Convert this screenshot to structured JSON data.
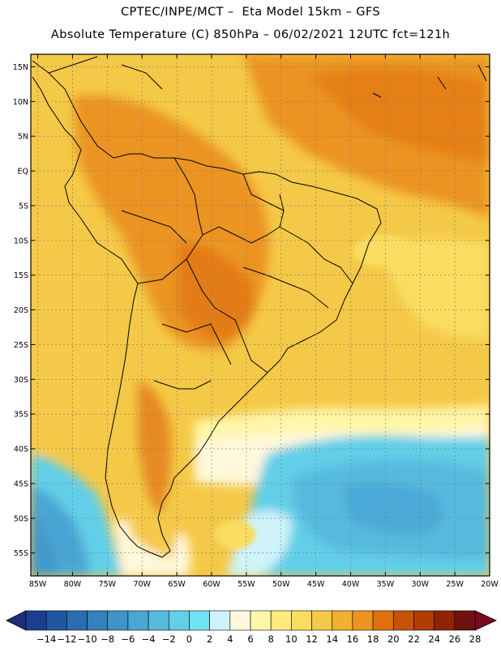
{
  "header": {
    "line1": "CPTEC/INPE/MCT –  Eta Model 15km – GFS",
    "line2": "Absolute Temperature (C) 850hPa – 06/02/2021 12UTC fct=121h"
  },
  "map": {
    "lat_labels": [
      "15N",
      "10N",
      "5N",
      "EQ",
      "5S",
      "10S",
      "15S",
      "20S",
      "25S",
      "30S",
      "35S",
      "40S",
      "45S",
      "50S",
      "55S"
    ],
    "lon_labels": [
      "85W",
      "80W",
      "75W",
      "70W",
      "65W",
      "60W",
      "55W",
      "50W",
      "45W",
      "40W",
      "35W",
      "30W",
      "25W",
      "20W"
    ]
  },
  "colorbar": {
    "labels": [
      "-14",
      "-12",
      "-10",
      "-8",
      "-6",
      "-4",
      "-2",
      "0",
      "2",
      "4",
      "6",
      "8",
      "10",
      "12",
      "14",
      "16",
      "18",
      "20",
      "22",
      "24",
      "26",
      "28"
    ],
    "colors": [
      "#1b3f8f",
      "#2157a0",
      "#2a6db0",
      "#3580bd",
      "#3f93c8",
      "#4aa6d4",
      "#56bade",
      "#62cfe8",
      "#6fe3f2",
      "#cff3fa",
      "#fff8dc",
      "#fff6a8",
      "#ffea80",
      "#fadc60",
      "#f5c948",
      "#f0b030",
      "#eb9420",
      "#e07010",
      "#c85208",
      "#b03c04",
      "#902402",
      "#6e1410"
    ],
    "under_color": "#1a2e7c",
    "over_color": "#7a0a1e"
  }
}
